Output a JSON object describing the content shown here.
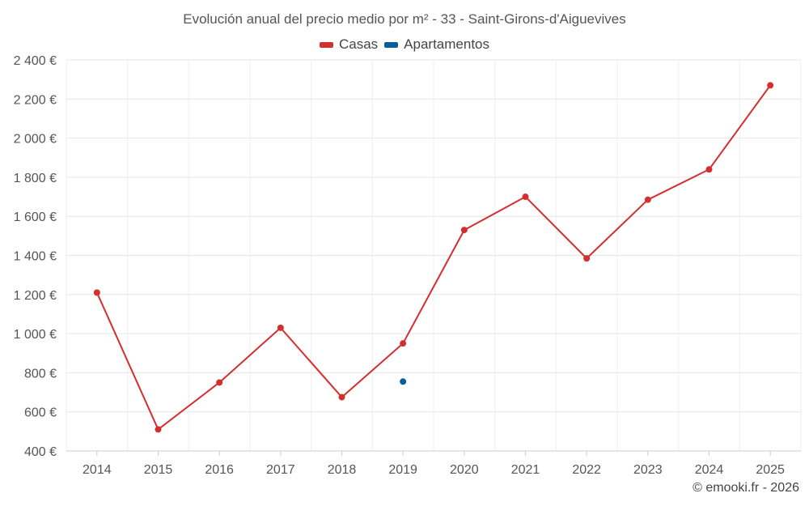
{
  "chart_data": {
    "type": "line",
    "title": "Evolución anual del precio medio por m² - 33 - Saint-Girons-d'Aiguevives",
    "categories": [
      "2014",
      "2015",
      "2016",
      "2017",
      "2018",
      "2019",
      "2020",
      "2021",
      "2022",
      "2023",
      "2024",
      "2025"
    ],
    "series": [
      {
        "name": "Casas",
        "color": "#d32f2f",
        "values": [
          1210,
          510,
          750,
          1030,
          675,
          950,
          1530,
          1700,
          1385,
          1685,
          1840,
          2270
        ]
      },
      {
        "name": "Apartamentos",
        "color": "#0a5e9a",
        "values": [
          null,
          null,
          null,
          null,
          null,
          755,
          null,
          null,
          null,
          null,
          null,
          null
        ]
      }
    ],
    "ylim": [
      400,
      2400
    ],
    "yticks": [
      400,
      600,
      800,
      1000,
      1200,
      1400,
      1600,
      1800,
      2000,
      2200,
      2400
    ],
    "ytick_labels": [
      "400 €",
      "600 €",
      "800 €",
      "1 000 €",
      "1 200 €",
      "1 400 €",
      "1 600 €",
      "1 800 €",
      "2 000 €",
      "2 200 €",
      "2 400 €"
    ],
    "grid": true,
    "legend_position": "top-center"
  },
  "credit": "© emooki.fr - 2026"
}
